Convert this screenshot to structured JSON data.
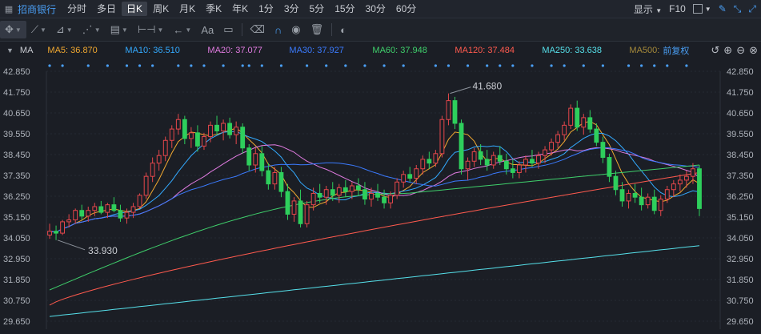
{
  "topbar": {
    "stock_name": "招商银行",
    "timeframes": [
      "分时",
      "多日",
      "日K",
      "周K",
      "月K",
      "季K",
      "年K",
      "1分",
      "3分",
      "5分",
      "15分",
      "30分",
      "60分"
    ],
    "active_timeframe": "日K",
    "display_label": "显示",
    "f10_label": "F10"
  },
  "mabar": {
    "ma_label": "MA",
    "items": [
      {
        "label": "MA5: 36.870",
        "color": "#f0a830"
      },
      {
        "label": "MA10: 36.510",
        "color": "#33aaff"
      },
      {
        "label": "MA20: 37.077",
        "color": "#e07be0"
      },
      {
        "label": "MA30: 37.927",
        "color": "#3b7bff"
      },
      {
        "label": "MA60: 37.948",
        "color": "#3fcf6b"
      },
      {
        "label": "MA120: 37.484",
        "color": "#ff5a4e"
      },
      {
        "label": "MA250: 33.638",
        "color": "#56e0ea"
      },
      {
        "label": "MA500: ",
        "color": "#a68a3a"
      }
    ],
    "adjust_label": "前复权"
  },
  "chart_data": {
    "type": "candlestick",
    "y_ticks": [
      "42.850",
      "41.750",
      "40.650",
      "39.550",
      "38.450",
      "37.350",
      "36.250",
      "35.150",
      "34.050",
      "32.950",
      "31.850",
      "30.750",
      "29.650"
    ],
    "ylim": [
      29.65,
      42.85
    ],
    "annotations": [
      {
        "label": "41.680",
        "kind": "high",
        "index": 62,
        "value": 41.68
      },
      {
        "label": "33.930",
        "kind": "low",
        "index": 1,
        "value": 33.93
      }
    ],
    "colors": {
      "up": "#e5474b",
      "down": "#2ecf5c"
    },
    "candles": [
      [
        34.2,
        34.8,
        34.0,
        34.4
      ],
      [
        34.4,
        34.7,
        33.93,
        34.3
      ],
      [
        34.3,
        35.0,
        34.2,
        34.9
      ],
      [
        34.9,
        35.3,
        34.6,
        35.0
      ],
      [
        35.0,
        35.6,
        34.8,
        35.5
      ],
      [
        35.5,
        35.8,
        35.0,
        35.2
      ],
      [
        35.2,
        35.7,
        34.9,
        35.5
      ],
      [
        35.5,
        35.9,
        35.2,
        35.7
      ],
      [
        35.7,
        36.0,
        35.3,
        35.4
      ],
      [
        35.4,
        35.9,
        35.1,
        35.8
      ],
      [
        35.8,
        36.2,
        35.4,
        35.5
      ],
      [
        35.5,
        35.8,
        34.9,
        35.1
      ],
      [
        35.1,
        35.6,
        34.8,
        35.4
      ],
      [
        35.4,
        35.9,
        35.1,
        35.7
      ],
      [
        35.7,
        36.4,
        35.6,
        36.3
      ],
      [
        36.3,
        37.5,
        36.1,
        37.3
      ],
      [
        37.3,
        38.3,
        37.0,
        38.0
      ],
      [
        38.0,
        38.7,
        37.6,
        38.4
      ],
      [
        38.4,
        39.4,
        38.1,
        39.2
      ],
      [
        39.2,
        40.0,
        38.8,
        39.8
      ],
      [
        39.8,
        40.6,
        39.5,
        40.3
      ],
      [
        40.3,
        40.5,
        39.0,
        39.3
      ],
      [
        39.3,
        39.9,
        38.8,
        39.6
      ],
      [
        39.6,
        40.0,
        38.6,
        38.9
      ],
      [
        38.9,
        39.6,
        38.7,
        39.4
      ],
      [
        39.4,
        40.2,
        39.1,
        40.0
      ],
      [
        40.0,
        40.5,
        39.5,
        39.7
      ],
      [
        39.7,
        40.3,
        39.2,
        40.1
      ],
      [
        40.1,
        40.4,
        39.3,
        39.5
      ],
      [
        39.5,
        40.2,
        39.0,
        39.9
      ],
      [
        39.9,
        40.1,
        38.5,
        38.8
      ],
      [
        38.8,
        39.0,
        37.6,
        37.9
      ],
      [
        37.9,
        38.8,
        37.5,
        38.5
      ],
      [
        38.5,
        38.9,
        37.3,
        37.6
      ],
      [
        37.6,
        38.0,
        36.6,
        36.9
      ],
      [
        36.9,
        37.8,
        36.6,
        37.5
      ],
      [
        37.5,
        37.8,
        36.2,
        36.5
      ],
      [
        36.5,
        36.9,
        35.0,
        35.3
      ],
      [
        35.3,
        36.2,
        34.9,
        36.0
      ],
      [
        36.0,
        36.6,
        34.6,
        34.8
      ],
      [
        34.8,
        36.0,
        34.6,
        35.8
      ],
      [
        35.8,
        36.7,
        35.5,
        36.4
      ],
      [
        36.4,
        36.9,
        35.9,
        36.2
      ],
      [
        36.2,
        36.8,
        35.8,
        36.6
      ],
      [
        36.6,
        37.0,
        36.0,
        36.3
      ],
      [
        36.3,
        36.9,
        35.9,
        36.7
      ],
      [
        36.7,
        37.1,
        36.2,
        36.5
      ],
      [
        36.5,
        37.0,
        36.1,
        36.8
      ],
      [
        36.8,
        37.2,
        36.3,
        36.6
      ],
      [
        36.6,
        37.0,
        35.8,
        36.1
      ],
      [
        36.1,
        36.7,
        35.7,
        36.4
      ],
      [
        36.4,
        36.9,
        36.0,
        36.2
      ],
      [
        36.2,
        36.6,
        35.6,
        35.9
      ],
      [
        35.9,
        36.5,
        35.6,
        36.3
      ],
      [
        36.3,
        37.2,
        36.1,
        37.0
      ],
      [
        37.0,
        37.6,
        36.7,
        37.4
      ],
      [
        37.4,
        37.8,
        37.0,
        37.2
      ],
      [
        37.2,
        37.9,
        36.9,
        37.7
      ],
      [
        37.7,
        38.4,
        37.4,
        38.2
      ],
      [
        38.2,
        38.6,
        37.7,
        38.0
      ],
      [
        38.0,
        38.7,
        37.8,
        38.5
      ],
      [
        38.5,
        40.5,
        38.3,
        40.3
      ],
      [
        40.3,
        41.68,
        40.0,
        41.3
      ],
      [
        41.3,
        41.5,
        39.8,
        40.1
      ],
      [
        40.1,
        40.3,
        37.4,
        37.7
      ],
      [
        37.7,
        38.3,
        37.1,
        38.1
      ],
      [
        38.1,
        38.8,
        37.8,
        38.6
      ],
      [
        38.6,
        39.0,
        37.9,
        38.2
      ],
      [
        38.2,
        38.7,
        37.6,
        37.9
      ],
      [
        37.9,
        38.6,
        37.7,
        38.4
      ],
      [
        38.4,
        38.9,
        37.9,
        38.1
      ],
      [
        38.1,
        38.5,
        37.4,
        37.7
      ],
      [
        37.7,
        38.2,
        37.2,
        37.5
      ],
      [
        37.5,
        38.1,
        37.2,
        37.9
      ],
      [
        37.9,
        38.4,
        37.5,
        38.2
      ],
      [
        38.2,
        38.7,
        37.8,
        38.0
      ],
      [
        38.0,
        38.6,
        37.7,
        38.4
      ],
      [
        38.4,
        38.9,
        38.0,
        38.7
      ],
      [
        38.7,
        39.3,
        38.4,
        39.1
      ],
      [
        39.1,
        39.7,
        38.8,
        39.5
      ],
      [
        39.5,
        40.2,
        39.2,
        40.0
      ],
      [
        40.0,
        41.1,
        39.8,
        40.9
      ],
      [
        40.9,
        41.3,
        39.7,
        39.9
      ],
      [
        39.9,
        40.6,
        39.5,
        40.4
      ],
      [
        40.4,
        40.8,
        39.6,
        39.8
      ],
      [
        39.8,
        40.1,
        38.9,
        39.1
      ],
      [
        39.1,
        39.4,
        38.0,
        38.3
      ],
      [
        38.3,
        38.5,
        37.0,
        37.3
      ],
      [
        37.3,
        37.6,
        36.3,
        36.6
      ],
      [
        36.6,
        37.0,
        35.7,
        36.0
      ],
      [
        36.0,
        36.6,
        35.6,
        36.4
      ],
      [
        36.4,
        36.9,
        35.9,
        36.2
      ],
      [
        36.2,
        36.7,
        35.5,
        35.8
      ],
      [
        35.8,
        36.4,
        35.6,
        36.2
      ],
      [
        36.2,
        36.6,
        35.3,
        35.5
      ],
      [
        35.5,
        36.3,
        35.2,
        36.1
      ],
      [
        36.1,
        36.8,
        35.9,
        36.6
      ],
      [
        36.6,
        37.1,
        36.2,
        36.9
      ],
      [
        36.9,
        37.4,
        36.5,
        37.1
      ],
      [
        37.1,
        37.6,
        36.7,
        37.3
      ],
      [
        37.3,
        38.0,
        36.9,
        37.7
      ],
      [
        37.7,
        37.9,
        35.2,
        35.6
      ]
    ]
  }
}
